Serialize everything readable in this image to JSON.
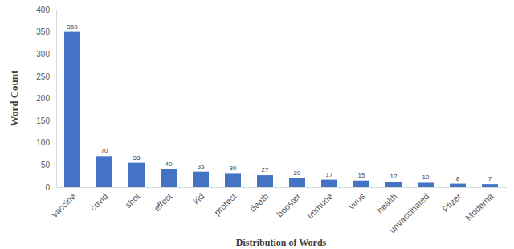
{
  "chart_data": {
    "type": "bar",
    "x_label": "Distribution of Words",
    "y_label": "Word Count",
    "categories": [
      "vaccine",
      "covid",
      "shot",
      "effect",
      "kid",
      "protect",
      "death",
      "booster",
      "Immune",
      "virus",
      "health",
      "unvaccinated",
      "Pfizer",
      "Moderna"
    ],
    "values": [
      350,
      70,
      55,
      40,
      35,
      30,
      27,
      20,
      17,
      15,
      12,
      10,
      8,
      7
    ],
    "color": "#4472c4",
    "ylim": [
      0,
      400
    ],
    "yticks": [
      0,
      50,
      100,
      150,
      200,
      250,
      300,
      350,
      400
    ],
    "grid": false,
    "data_labels": true
  }
}
